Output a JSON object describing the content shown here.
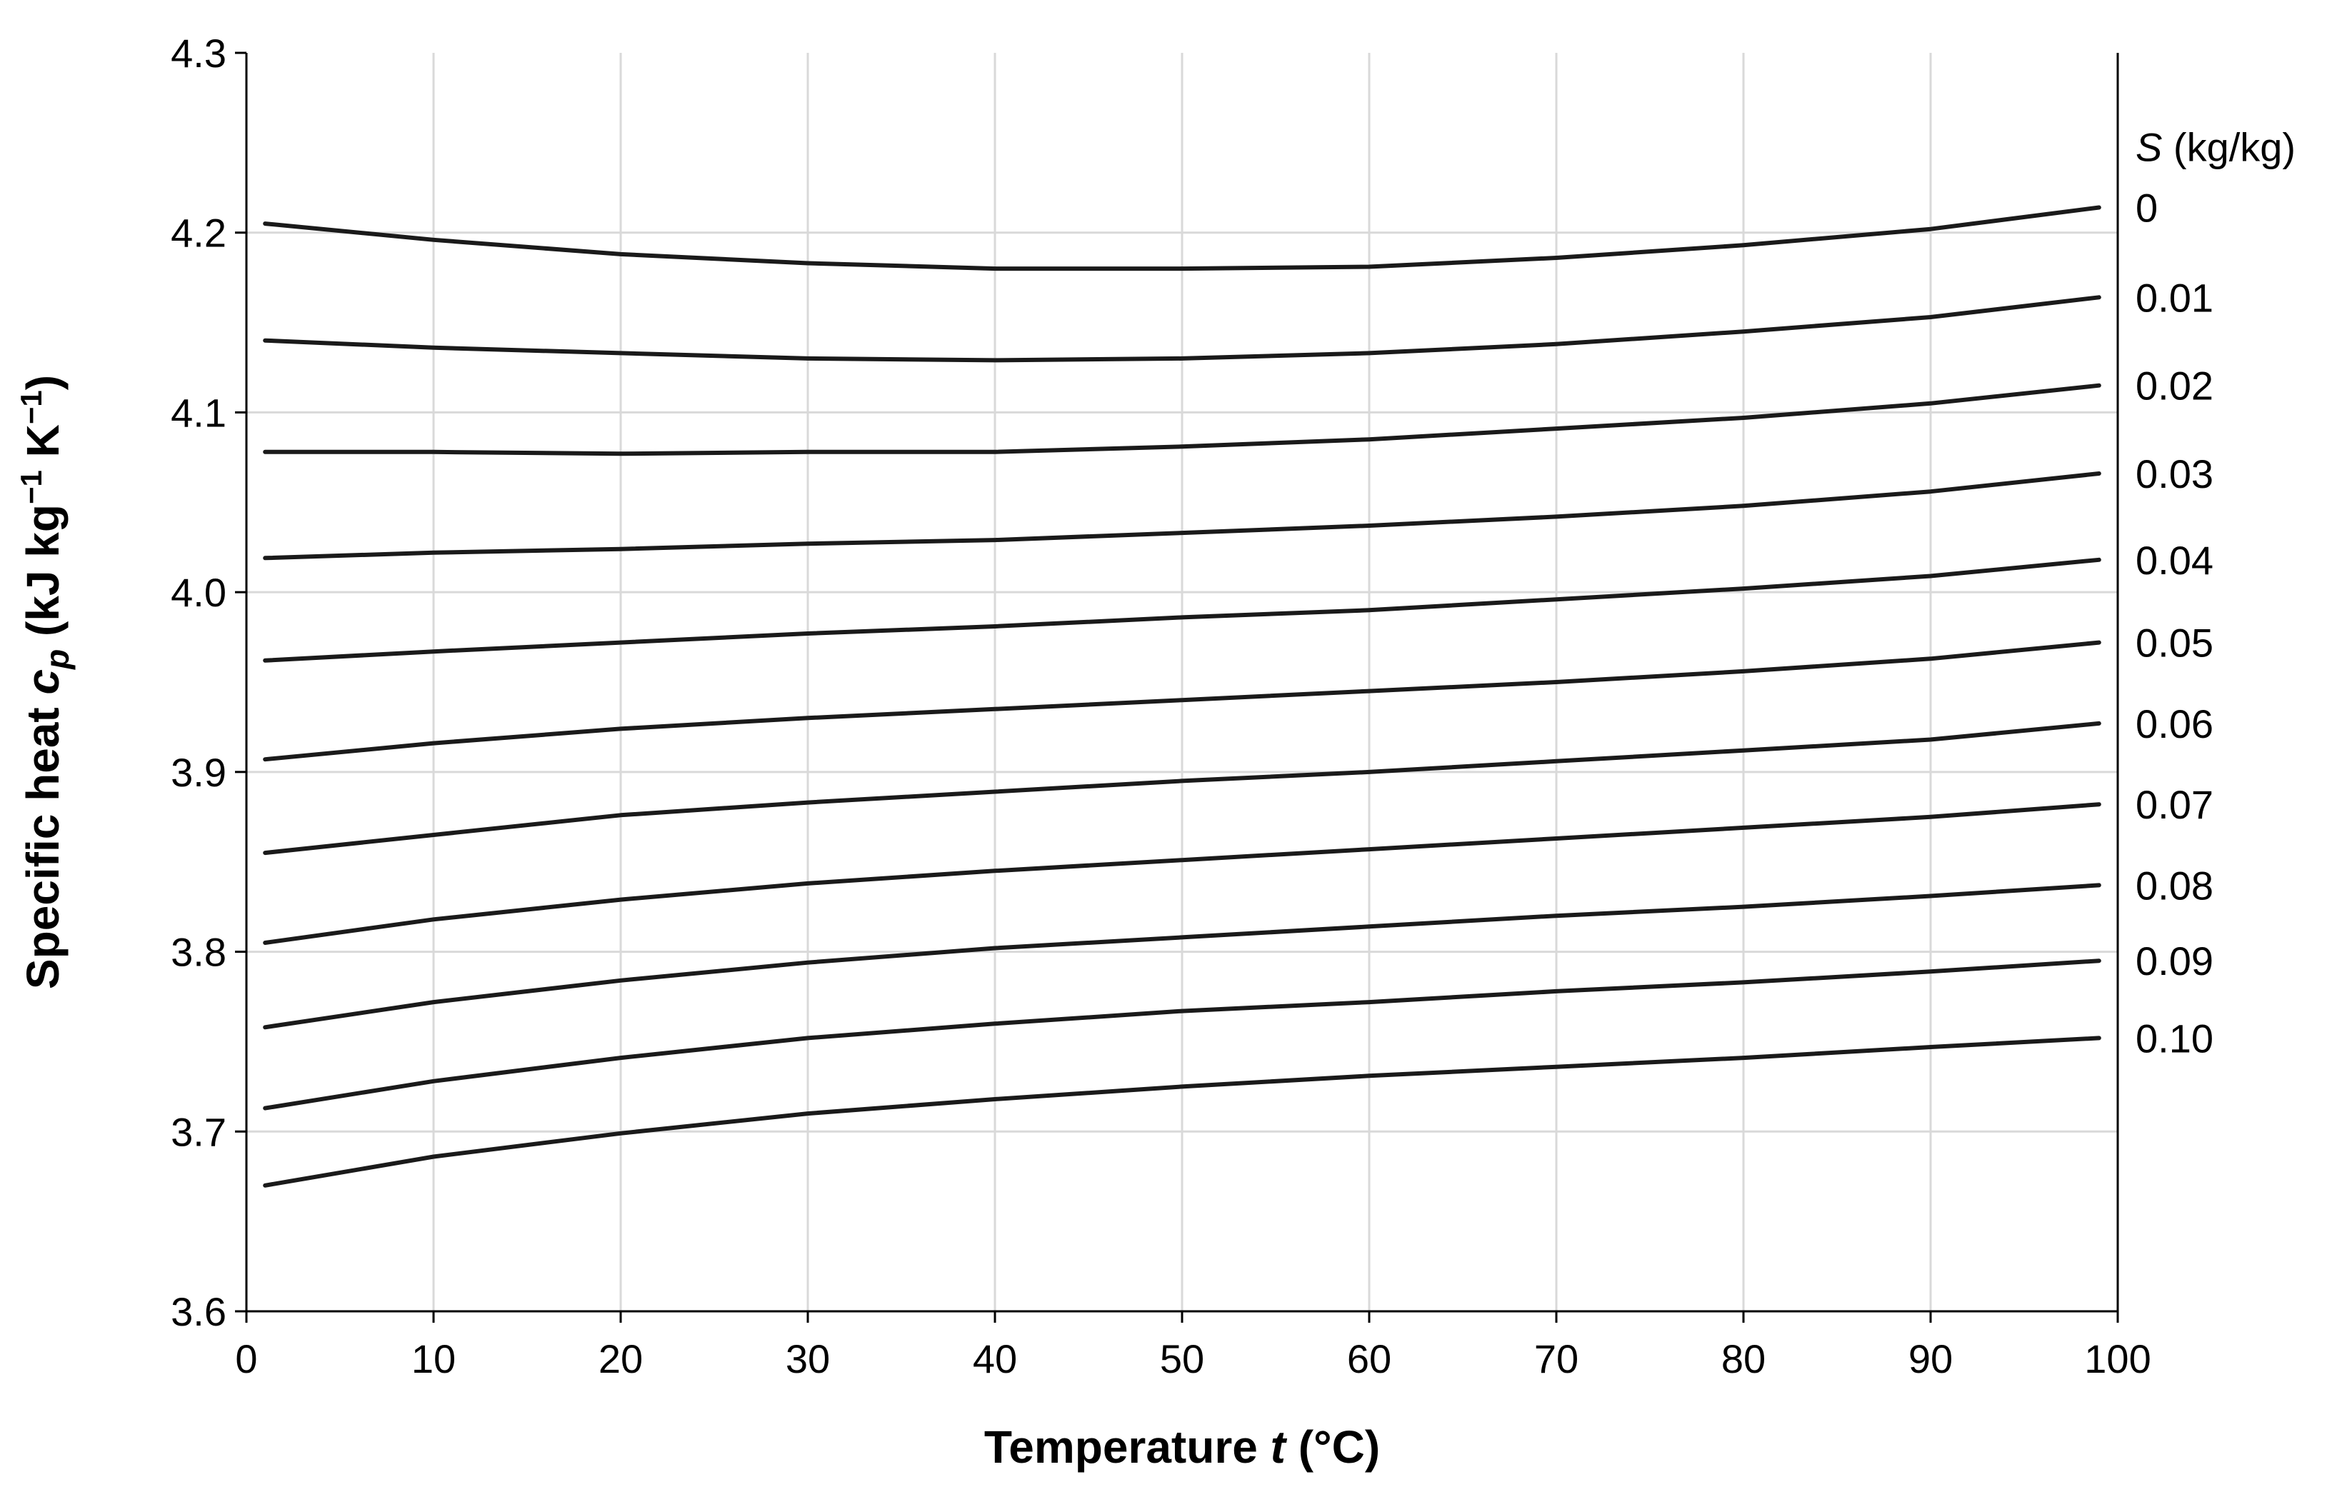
{
  "chart_data": {
    "type": "line",
    "xlabel": {
      "prefix": "Temperature ",
      "var": "t",
      "suffix": " (°C)"
    },
    "ylabel": {
      "prefix": "Specific heat ",
      "var": "c",
      "sub": "p",
      "suffix": " (kJ kg",
      "exp1": "−1",
      "mid": " K",
      "exp2": "−1",
      "end": ")"
    },
    "xlim": [
      0,
      100
    ],
    "ylim": [
      3.6,
      4.3
    ],
    "xticks": [
      0,
      10,
      20,
      30,
      40,
      50,
      60,
      70,
      80,
      90,
      100
    ],
    "yticks": [
      3.6,
      3.7,
      3.8,
      3.9,
      4.0,
      4.1,
      4.2,
      4.3
    ],
    "ytick_labels": [
      "3.6",
      "3.7",
      "3.8",
      "3.9",
      "4.0",
      "4.1",
      "4.2",
      "4.3"
    ],
    "grid": true,
    "line_color": "#1a1a1a",
    "grid_color": "#d9d9d9",
    "legend": {
      "title_var": "S",
      "title_unit": " (kg/kg)",
      "placement": "right"
    },
    "x": [
      1,
      10,
      20,
      30,
      40,
      50,
      60,
      70,
      80,
      90,
      99
    ],
    "series": [
      {
        "name": "0",
        "values": [
          4.205,
          4.196,
          4.188,
          4.183,
          4.18,
          4.18,
          4.181,
          4.186,
          4.193,
          4.202,
          4.214
        ]
      },
      {
        "name": "0.01",
        "values": [
          4.14,
          4.136,
          4.133,
          4.13,
          4.129,
          4.13,
          4.133,
          4.138,
          4.145,
          4.153,
          4.164
        ]
      },
      {
        "name": "0.02",
        "values": [
          4.078,
          4.078,
          4.077,
          4.078,
          4.078,
          4.081,
          4.085,
          4.091,
          4.097,
          4.105,
          4.115
        ]
      },
      {
        "name": "0.03",
        "values": [
          4.019,
          4.022,
          4.024,
          4.027,
          4.029,
          4.033,
          4.037,
          4.042,
          4.048,
          4.056,
          4.066
        ]
      },
      {
        "name": "0.04",
        "values": [
          3.962,
          3.967,
          3.972,
          3.977,
          3.981,
          3.986,
          3.99,
          3.996,
          4.002,
          4.009,
          4.018
        ]
      },
      {
        "name": "0.05",
        "values": [
          3.907,
          3.916,
          3.924,
          3.93,
          3.935,
          3.94,
          3.945,
          3.95,
          3.956,
          3.963,
          3.972
        ]
      },
      {
        "name": "0.06",
        "values": [
          3.855,
          3.865,
          3.876,
          3.883,
          3.889,
          3.895,
          3.9,
          3.906,
          3.912,
          3.918,
          3.927
        ]
      },
      {
        "name": "0.07",
        "values": [
          3.805,
          3.818,
          3.829,
          3.838,
          3.845,
          3.851,
          3.857,
          3.863,
          3.869,
          3.875,
          3.882
        ]
      },
      {
        "name": "0.08",
        "values": [
          3.758,
          3.772,
          3.784,
          3.794,
          3.802,
          3.808,
          3.814,
          3.82,
          3.825,
          3.831,
          3.837
        ]
      },
      {
        "name": "0.09",
        "values": [
          3.713,
          3.728,
          3.741,
          3.752,
          3.76,
          3.767,
          3.772,
          3.778,
          3.783,
          3.789,
          3.795
        ]
      },
      {
        "name": "0.10",
        "values": [
          3.67,
          3.686,
          3.699,
          3.71,
          3.718,
          3.725,
          3.731,
          3.736,
          3.741,
          3.747,
          3.752
        ]
      }
    ]
  }
}
